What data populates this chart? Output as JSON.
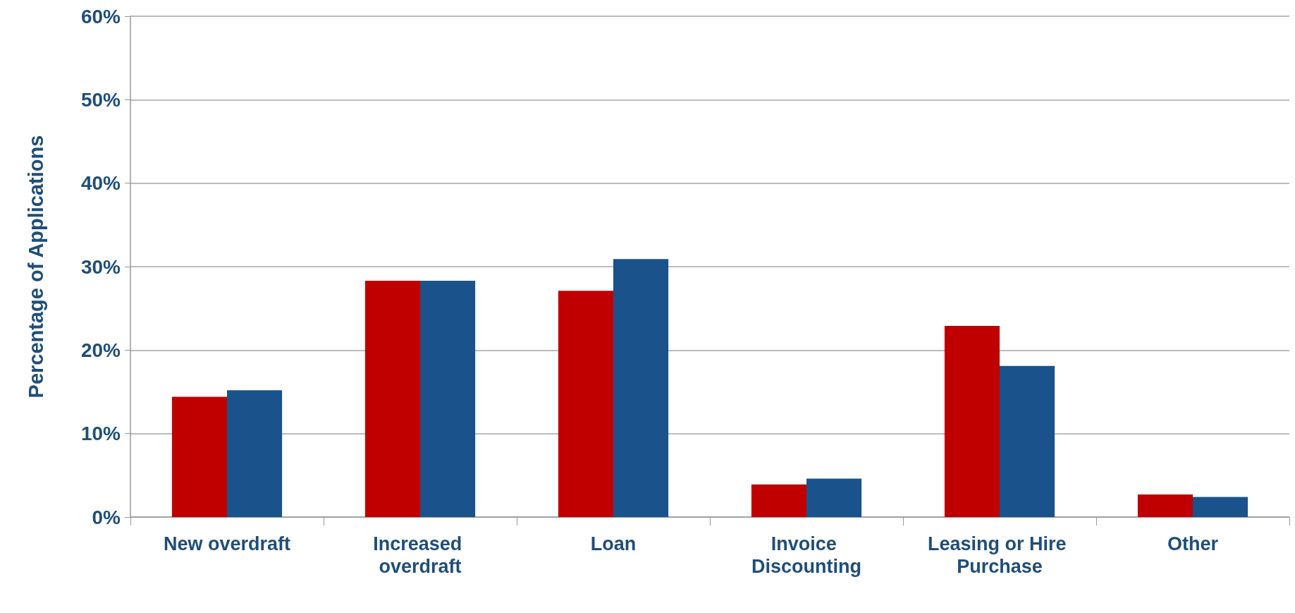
{
  "chart_data": {
    "type": "bar",
    "ylabel": "Percentage of Applications",
    "categories": [
      "New overdraft",
      "Increased overdraft",
      "Loan",
      "Invoice Discounting",
      "Leasing or Hire Purchase",
      "Other"
    ],
    "series": [
      {
        "color": "#c00000",
        "values": [
          14.4,
          28.3,
          27.1,
          3.9,
          22.9,
          2.7
        ]
      },
      {
        "color": "#1a528c",
        "values": [
          15.2,
          28.3,
          30.9,
          4.6,
          18.1,
          2.4
        ]
      }
    ],
    "ylim": [
      0,
      60
    ],
    "yticks": [
      {
        "value": 0,
        "label": "0%"
      },
      {
        "value": 10,
        "label": "10%"
      },
      {
        "value": 20,
        "label": "20%"
      },
      {
        "value": 30,
        "label": "30%"
      },
      {
        "value": 40,
        "label": "40%"
      },
      {
        "value": 50,
        "label": "50%"
      },
      {
        "value": 60,
        "label": "60%"
      }
    ],
    "grid": "y"
  }
}
